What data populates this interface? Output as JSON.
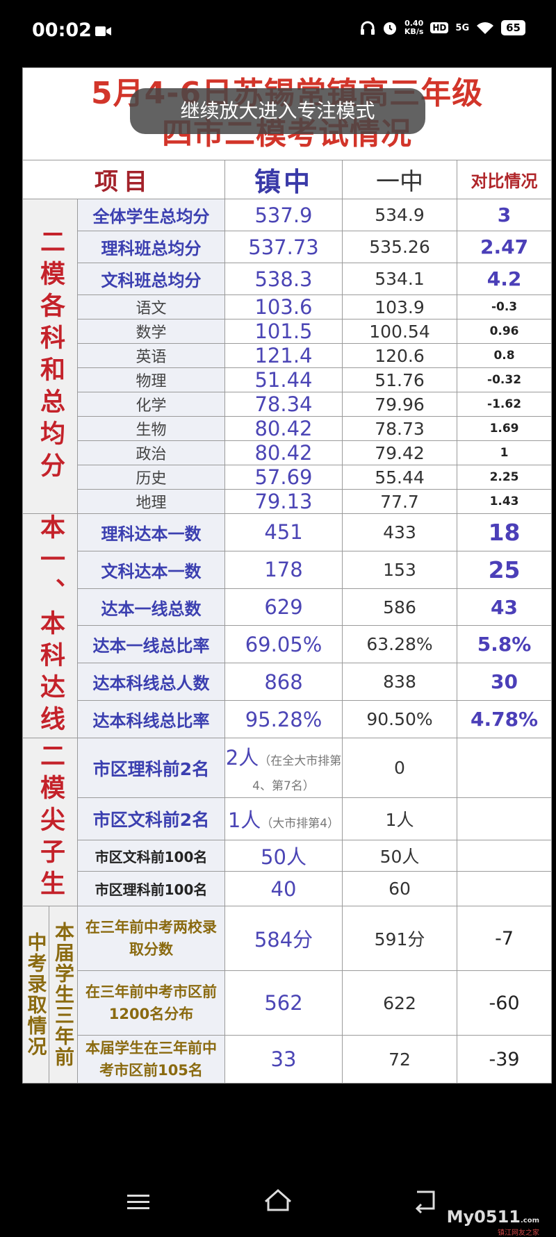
{
  "status_bar": {
    "time": "00:02",
    "net_speed": "0.40",
    "net_unit": "KB/s",
    "hd": "HD",
    "network": "5G",
    "battery": "65"
  },
  "toast": "继续放大进入专注模式",
  "document": {
    "title_line1": "5月4-6日苏锡常镇高三年级",
    "title_line2": "四市二模考试情况",
    "header": {
      "item": "项目",
      "school_a": "镇中",
      "school_b": "一中",
      "diff": "对比情况"
    },
    "sections": [
      {
        "label": "二模各科和总均分",
        "rows": [
          {
            "item": "全体学生总均分",
            "a": "537.9",
            "b": "534.9",
            "diff": "3"
          },
          {
            "item": "理科班总均分",
            "a": "537.73",
            "b": "535.26",
            "diff": "2.47"
          },
          {
            "item": "文科班总均分",
            "a": "538.3",
            "b": "534.1",
            "diff": "4.2"
          },
          {
            "item": "语文",
            "a": "103.6",
            "b": "103.9",
            "diff": "-0.3"
          },
          {
            "item": "数学",
            "a": "101.5",
            "b": "100.54",
            "diff": "0.96"
          },
          {
            "item": "英语",
            "a": "121.4",
            "b": "120.6",
            "diff": "0.8"
          },
          {
            "item": "物理",
            "a": "51.44",
            "b": "51.76",
            "diff": "-0.32"
          },
          {
            "item": "化学",
            "a": "78.34",
            "b": "79.96",
            "diff": "-1.62"
          },
          {
            "item": "生物",
            "a": "80.42",
            "b": "78.73",
            "diff": "1.69"
          },
          {
            "item": "政治",
            "a": "80.42",
            "b": "79.42",
            "diff": "1"
          },
          {
            "item": "历史",
            "a": "57.69",
            "b": "55.44",
            "diff": "2.25"
          },
          {
            "item": "地理",
            "a": "79.13",
            "b": "77.7",
            "diff": "1.43"
          }
        ]
      },
      {
        "label": "本一、本科达线",
        "rows": [
          {
            "item": "理科达本一数",
            "a": "451",
            "b": "433",
            "diff": "18"
          },
          {
            "item": "文科达本一数",
            "a": "178",
            "b": "153",
            "diff": "25"
          },
          {
            "item": "达本一线总数",
            "a": "629",
            "b": "586",
            "diff": "43"
          },
          {
            "item": "达本一线总比率",
            "a": "69.05%",
            "b": "63.28%",
            "diff": "5.8%"
          },
          {
            "item": "达本科线总人数",
            "a": "868",
            "b": "838",
            "diff": "30"
          },
          {
            "item": "达本科线总比率",
            "a": "95.28%",
            "b": "90.50%",
            "diff": "4.78%"
          }
        ]
      },
      {
        "label": "二模尖子生",
        "rows": [
          {
            "item": "市区理科前2名",
            "a": "2人",
            "a_note": "（在全大市排第4、第7名）",
            "b": "0"
          },
          {
            "item": "市区文科前2名",
            "a": "1人",
            "a_note": "（大市排第4）",
            "b": "1人"
          },
          {
            "item": "市区文科前100名",
            "a": "50人",
            "b": "50人"
          },
          {
            "item": "市区理科前100名",
            "a": "40",
            "b": "60"
          }
        ]
      },
      {
        "label": "中考录取情况",
        "label2": "本届学生三年前",
        "rows": [
          {
            "item": "在三年前中考两校录取分数",
            "a": "584分",
            "b": "591分",
            "diff": "-7"
          },
          {
            "item": "在三年前中考市区前1200名分布",
            "a": "562",
            "b": "622",
            "diff": "-60"
          },
          {
            "item": "本届学生在三年前中考市区前105名",
            "a": "33",
            "b": "72",
            "diff": "-39"
          }
        ]
      }
    ]
  },
  "watermark": {
    "brand": "My0511",
    "domain": ".com",
    "subtitle": "镇江网友之家"
  }
}
